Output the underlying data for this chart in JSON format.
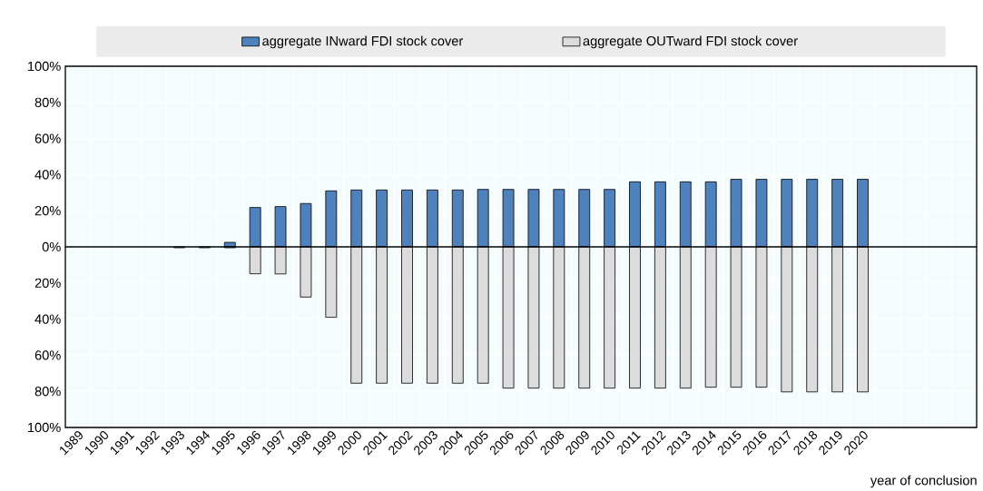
{
  "chart_data": {
    "type": "bar",
    "xlabel": "year of conclusion",
    "categories": [
      "1989",
      "1990",
      "1991",
      "1992",
      "1993",
      "1994",
      "1995",
      "1996",
      "1997",
      "1998",
      "1999",
      "2000",
      "2001",
      "2002",
      "2003",
      "2004",
      "2005",
      "2006",
      "2007",
      "2008",
      "2009",
      "2010",
      "2011",
      "2012",
      "2013",
      "2014",
      "2015",
      "2016",
      "2017",
      "2018",
      "2019",
      "2020",
      null,
      null,
      null,
      null
    ],
    "series": [
      {
        "name": "aggregate INward FDI stock cover",
        "color": "#4f81bd",
        "values": [
          null,
          null,
          null,
          null,
          null,
          null,
          2.5,
          21.8,
          22.3,
          24,
          31,
          31.5,
          31.5,
          31.5,
          31.5,
          31.5,
          31.8,
          31.8,
          31.8,
          31.8,
          31.8,
          31.8,
          36,
          36,
          36,
          36,
          37.4,
          37.4,
          37.4,
          37.4,
          37.4,
          37.4,
          null,
          null,
          null,
          null
        ]
      },
      {
        "name": "aggregate OUTward FDI stock cover",
        "color": "#dcdcdc",
        "values": [
          null,
          null,
          null,
          null,
          -0.5,
          -0.5,
          -0.5,
          -14.9,
          -15,
          -27.8,
          -39,
          -75.5,
          -75.5,
          -75.5,
          -75.5,
          -75.5,
          -75.5,
          -78.2,
          -78.2,
          -78.2,
          -78.2,
          -78.2,
          -78.2,
          -78.2,
          -78.2,
          -77.7,
          -77.7,
          -77.7,
          -80.3,
          -80.3,
          -80.3,
          -80.3,
          null,
          null,
          null,
          null
        ]
      }
    ],
    "ylim": [
      -100,
      100
    ],
    "yticks": [
      {
        "value": -100,
        "label": "100%"
      },
      {
        "value": -80,
        "label": "80%"
      },
      {
        "value": -60,
        "label": "60%"
      },
      {
        "value": -40,
        "label": "40%"
      },
      {
        "value": -20,
        "label": "20%"
      },
      {
        "value": 0,
        "label": "0%"
      },
      {
        "value": 20,
        "label": "20%"
      },
      {
        "value": 40,
        "label": "40%"
      },
      {
        "value": 60,
        "label": "60%"
      },
      {
        "value": 80,
        "label": "80%"
      },
      {
        "value": 100,
        "label": "100%"
      }
    ],
    "stacked": true,
    "grid": true,
    "legend": "top"
  }
}
